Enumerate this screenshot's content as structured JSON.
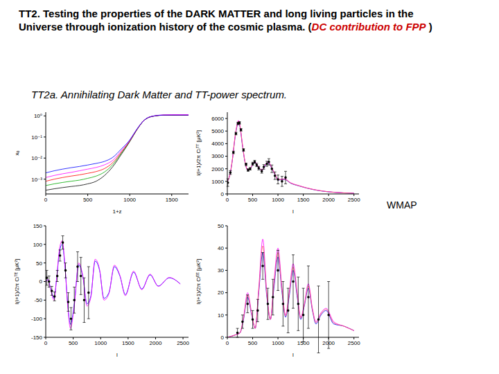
{
  "title": [
    {
      "text": "TT2. Testing the properties of the DARK MATTER and long living particles in the Universe through ionization history of the cosmic plasma. (",
      "color": "#000000"
    },
    {
      "text": "DC contribution to FPP",
      "color": "#cc0000",
      "style": "italic"
    },
    {
      "text": " )",
      "color": "#000000"
    }
  ],
  "subtitle": "TT2a. Annihilating Dark Matter and TT-power spectrum.",
  "label": "WMAP",
  "chart_data": [
    {
      "type": "line",
      "x_label": "1+z",
      "y_label": "xₑ",
      "log": "y",
      "xlim": [
        0,
        1700
      ],
      "xticks": [
        0,
        500,
        1000,
        1500
      ],
      "ylim": [
        0.0002,
        1.5
      ],
      "yticks": [
        {
          "value": 0.001,
          "label": "10⁻³"
        },
        {
          "value": 0.01,
          "label": "10⁻²"
        },
        {
          "value": 0.1,
          "label": "10⁻¹"
        },
        {
          "value": 1,
          "label": "10⁰"
        }
      ],
      "x": [
        1,
        100,
        200,
        300,
        400,
        500,
        600,
        700,
        800,
        900,
        1000,
        1050,
        1100,
        1150,
        1200,
        1300,
        1400,
        1500,
        1600,
        1700
      ],
      "series": [
        {
          "color": "#000000",
          "values": [
            0.0003,
            0.00035,
            0.0004,
            0.00045,
            0.0005,
            0.0006,
            0.0008,
            0.0015,
            0.004,
            0.015,
            0.06,
            0.13,
            0.27,
            0.5,
            0.75,
            1,
            1.08,
            1.08,
            1.08,
            1.08
          ]
        },
        {
          "color": "#00aa00",
          "values": [
            0.0005,
            0.0006,
            0.0007,
            0.0008,
            0.0009,
            0.0011,
            0.0014,
            0.0022,
            0.005,
            0.017,
            0.062,
            0.13,
            0.27,
            0.5,
            0.75,
            1,
            1.08,
            1.08,
            1.08,
            1.08
          ]
        },
        {
          "color": "#ff0000",
          "values": [
            0.0008,
            0.001,
            0.0012,
            0.0014,
            0.0016,
            0.0019,
            0.0023,
            0.0032,
            0.0062,
            0.019,
            0.065,
            0.135,
            0.275,
            0.5,
            0.75,
            1,
            1.08,
            1.08,
            1.08,
            1.08
          ]
        },
        {
          "color": "#ff00ff",
          "values": [
            0.0012,
            0.0015,
            0.0018,
            0.0021,
            0.0025,
            0.003,
            0.0036,
            0.0048,
            0.008,
            0.022,
            0.068,
            0.14,
            0.28,
            0.51,
            0.76,
            1.02,
            1.12,
            1.15,
            1.15,
            1.15
          ]
        },
        {
          "color": "#0000ff",
          "values": [
            0.002,
            0.0025,
            0.003,
            0.0035,
            0.004,
            0.0047,
            0.0056,
            0.007,
            0.011,
            0.027,
            0.072,
            0.145,
            0.285,
            0.51,
            0.76,
            1.01,
            1.09,
            1.09,
            1.09,
            1.09
          ]
        }
      ]
    },
    {
      "type": "line",
      "x_label": "l",
      "y_label": "l(l+1)/2π Cₗᵀᵀ [μK²]",
      "xlim": [
        0,
        2600
      ],
      "xticks": [
        0,
        500,
        1000,
        1500,
        2000,
        2500
      ],
      "ylim": [
        0,
        6500
      ],
      "yticks": [
        0,
        1000,
        2000,
        3000,
        4000,
        5000,
        6000
      ],
      "x": [
        2,
        50,
        100,
        150,
        200,
        220,
        250,
        300,
        350,
        410,
        480,
        540,
        600,
        680,
        750,
        810,
        880,
        950,
        1000,
        1130,
        1250,
        1400,
        1550,
        1700,
        1900,
        2100,
        2300,
        2500
      ],
      "series": [
        {
          "color": "#0000ff",
          "values": [
            1000,
            1500,
            2700,
            4400,
            5500,
            5700,
            5300,
            3800,
            2500,
            1850,
            2150,
            2500,
            2200,
            1850,
            2250,
            2450,
            2000,
            1450,
            1100,
            1150,
            850,
            650,
            480,
            340,
            210,
            130,
            80,
            50
          ]
        },
        {
          "color": "#ff00ff",
          "values": [
            1000,
            1520,
            2750,
            4500,
            5650,
            5850,
            5450,
            3900,
            2550,
            1880,
            2200,
            2580,
            2270,
            1900,
            2330,
            2550,
            2080,
            1510,
            1150,
            1200,
            890,
            680,
            500,
            360,
            225,
            140,
            85,
            55
          ]
        },
        {
          "color": "#ff6666",
          "values": [
            1000,
            1510,
            2720,
            4450,
            5580,
            5780,
            5380,
            3850,
            2520,
            1860,
            2170,
            2540,
            2230,
            1870,
            2290,
            2500,
            2040,
            1480,
            1120,
            1170,
            870,
            665,
            490,
            350,
            218,
            135,
            82,
            52
          ]
        },
        {
          "type": "scatter",
          "color": "#000000",
          "marker": "circle",
          "x": [
            10,
            60,
            120,
            170,
            210,
            240,
            270,
            320,
            370,
            410,
            450,
            500,
            540,
            580,
            620,
            680,
            720,
            780,
            820,
            880,
            940,
            1000,
            1080,
            1150
          ],
          "values": [
            900,
            1700,
            3300,
            4800,
            5600,
            5650,
            5100,
            3500,
            2350,
            1900,
            2000,
            2400,
            2550,
            2300,
            2050,
            1800,
            2150,
            2400,
            2550,
            2000,
            1450,
            1150,
            1000,
            1300
          ],
          "error": [
            300,
            150,
            100,
            100,
            100,
            100,
            100,
            100,
            100,
            100,
            100,
            120,
            120,
            130,
            140,
            150,
            180,
            200,
            250,
            300,
            300,
            350,
            400,
            500
          ]
        }
      ]
    },
    {
      "type": "line",
      "x_label": "l",
      "y_label": "l(l+1)/2π Cₗᵀᴱ [μK²]",
      "xlim": [
        0,
        2600
      ],
      "xticks": [
        0,
        500,
        1000,
        1500,
        2000,
        2500
      ],
      "ylim": [
        -150,
        150
      ],
      "yticks": [
        -150,
        -100,
        -50,
        0,
        50,
        100,
        150
      ],
      "x": [
        2,
        40,
        90,
        150,
        200,
        250,
        300,
        350,
        400,
        450,
        520,
        600,
        680,
        750,
        820,
        900,
        980,
        1060,
        1150,
        1250,
        1350,
        1450,
        1600,
        1750,
        1900,
        2050,
        2250,
        2450
      ],
      "series": [
        {
          "color": "#0000ff",
          "values": [
            0,
            5,
            -20,
            -45,
            10,
            80,
            100,
            40,
            -60,
            -115,
            -60,
            45,
            10,
            -60,
            -40,
            55,
            30,
            -45,
            -30,
            40,
            15,
            -35,
            25,
            -20,
            18,
            -12,
            10,
            -6
          ]
        },
        {
          "color": "#ff00ff",
          "values": [
            0,
            5,
            -22,
            -50,
            11,
            88,
            110,
            44,
            -66,
            -126,
            -66,
            50,
            11,
            -66,
            -44,
            60,
            33,
            -50,
            -33,
            44,
            17,
            -38,
            28,
            -22,
            20,
            -13,
            11,
            -7
          ]
        },
        {
          "type": "scatter",
          "color": "#000000",
          "marker": "circle",
          "x": [
            20,
            60,
            110,
            160,
            210,
            260,
            310,
            360,
            410,
            460,
            520,
            580,
            640,
            700,
            780
          ],
          "values": [
            10,
            0,
            -25,
            -40,
            15,
            70,
            105,
            30,
            -55,
            -100,
            -50,
            40,
            15,
            -50,
            -30
          ],
          "error": [
            20,
            15,
            12,
            12,
            15,
            15,
            18,
            20,
            25,
            30,
            35,
            40,
            50,
            60,
            70
          ]
        }
      ]
    },
    {
      "type": "line",
      "x_label": "l",
      "y_label": "l(l+1)/2π Cₗᴱᴱ [μK²]",
      "xlim": [
        0,
        2600
      ],
      "xticks": [
        0,
        500,
        1000,
        1500,
        2000,
        2500
      ],
      "ylim": [
        0,
        50
      ],
      "yticks": [
        0,
        10,
        20,
        30,
        40,
        50
      ],
      "x": [
        2,
        150,
        250,
        320,
        400,
        480,
        550,
        620,
        700,
        780,
        850,
        920,
        1000,
        1080,
        1150,
        1220,
        1300,
        1380,
        1450,
        1520,
        1600,
        1680,
        1750,
        1850,
        1950,
        2100,
        2300,
        2500
      ],
      "series": [
        {
          "color": "#0000ff",
          "values": [
            0,
            1,
            2,
            8,
            18,
            10,
            4,
            20,
            38,
            18,
            8,
            22,
            36,
            20,
            9,
            18,
            30,
            18,
            8,
            14,
            22,
            12,
            6,
            10,
            12,
            6,
            5,
            3
          ]
        },
        {
          "color": "#ff00ff",
          "values": [
            0,
            1,
            2,
            9,
            20,
            11,
            4,
            22,
            44,
            20,
            8,
            25,
            40,
            22,
            10,
            20,
            33,
            20,
            9,
            15,
            24,
            13,
            7,
            11,
            13,
            7,
            5,
            3
          ]
        },
        {
          "color": "#ff6666",
          "values": [
            0,
            1,
            2,
            8.5,
            19,
            10.5,
            4,
            21,
            41,
            19,
            8,
            23.5,
            38,
            21,
            9.5,
            19,
            31.5,
            19,
            8.5,
            14.5,
            23,
            12.5,
            6.5,
            10.5,
            12.5,
            6.5,
            5,
            3
          ]
        },
        {
          "type": "scatter",
          "color": "#000000",
          "marker": "circle",
          "x": [
            200,
            300,
            400,
            500,
            600,
            700,
            800,
            900,
            1000,
            1100,
            1200,
            1300,
            1400,
            1500,
            1600,
            1800,
            2000
          ],
          "values": [
            2,
            7,
            15,
            8,
            12,
            32,
            15,
            18,
            30,
            15,
            12,
            25,
            15,
            10,
            18,
            8,
            10
          ],
          "error": [
            2,
            3,
            4,
            4,
            5,
            6,
            7,
            8,
            9,
            10,
            10,
            12,
            12,
            12,
            14,
            15,
            15
          ]
        }
      ]
    }
  ]
}
